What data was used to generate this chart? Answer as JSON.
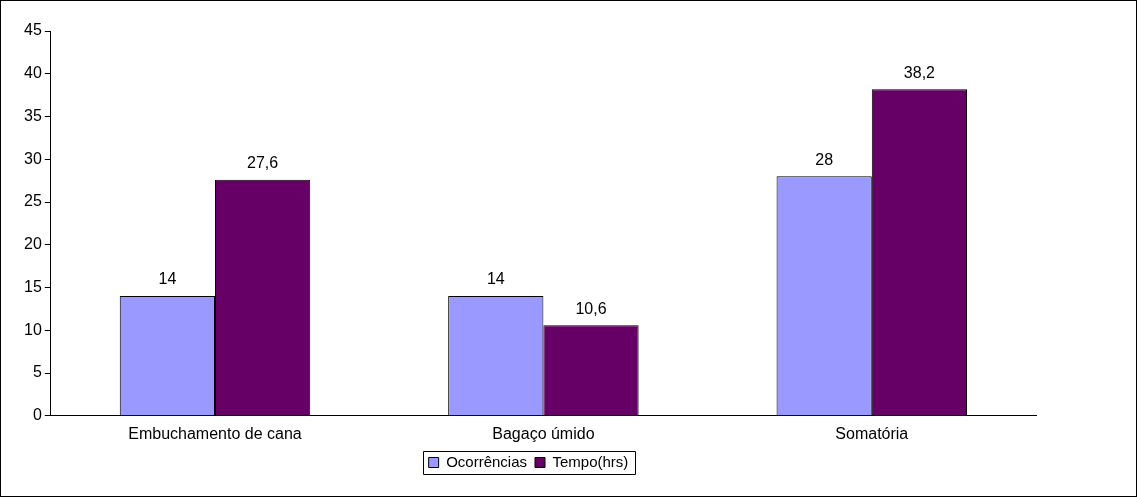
{
  "chart_data": {
    "type": "bar",
    "categories": [
      "Embuchamento de cana",
      "Bagaço úmido",
      "Somatória"
    ],
    "series": [
      {
        "name": "Ocorrências",
        "color": "#9999ff",
        "values": [
          14,
          14,
          28
        ],
        "value_labels": [
          "14",
          "14",
          "28"
        ]
      },
      {
        "name": "Tempo(hrs)",
        "color": "#660066",
        "values": [
          27.6,
          10.6,
          38.2
        ],
        "value_labels": [
          "27,6",
          "10,6",
          "38,2"
        ]
      }
    ],
    "ylim": [
      0,
      45
    ],
    "yticks": [
      0,
      5,
      10,
      15,
      20,
      25,
      30,
      35,
      40,
      45
    ],
    "grid": false,
    "legend": "bottom"
  }
}
